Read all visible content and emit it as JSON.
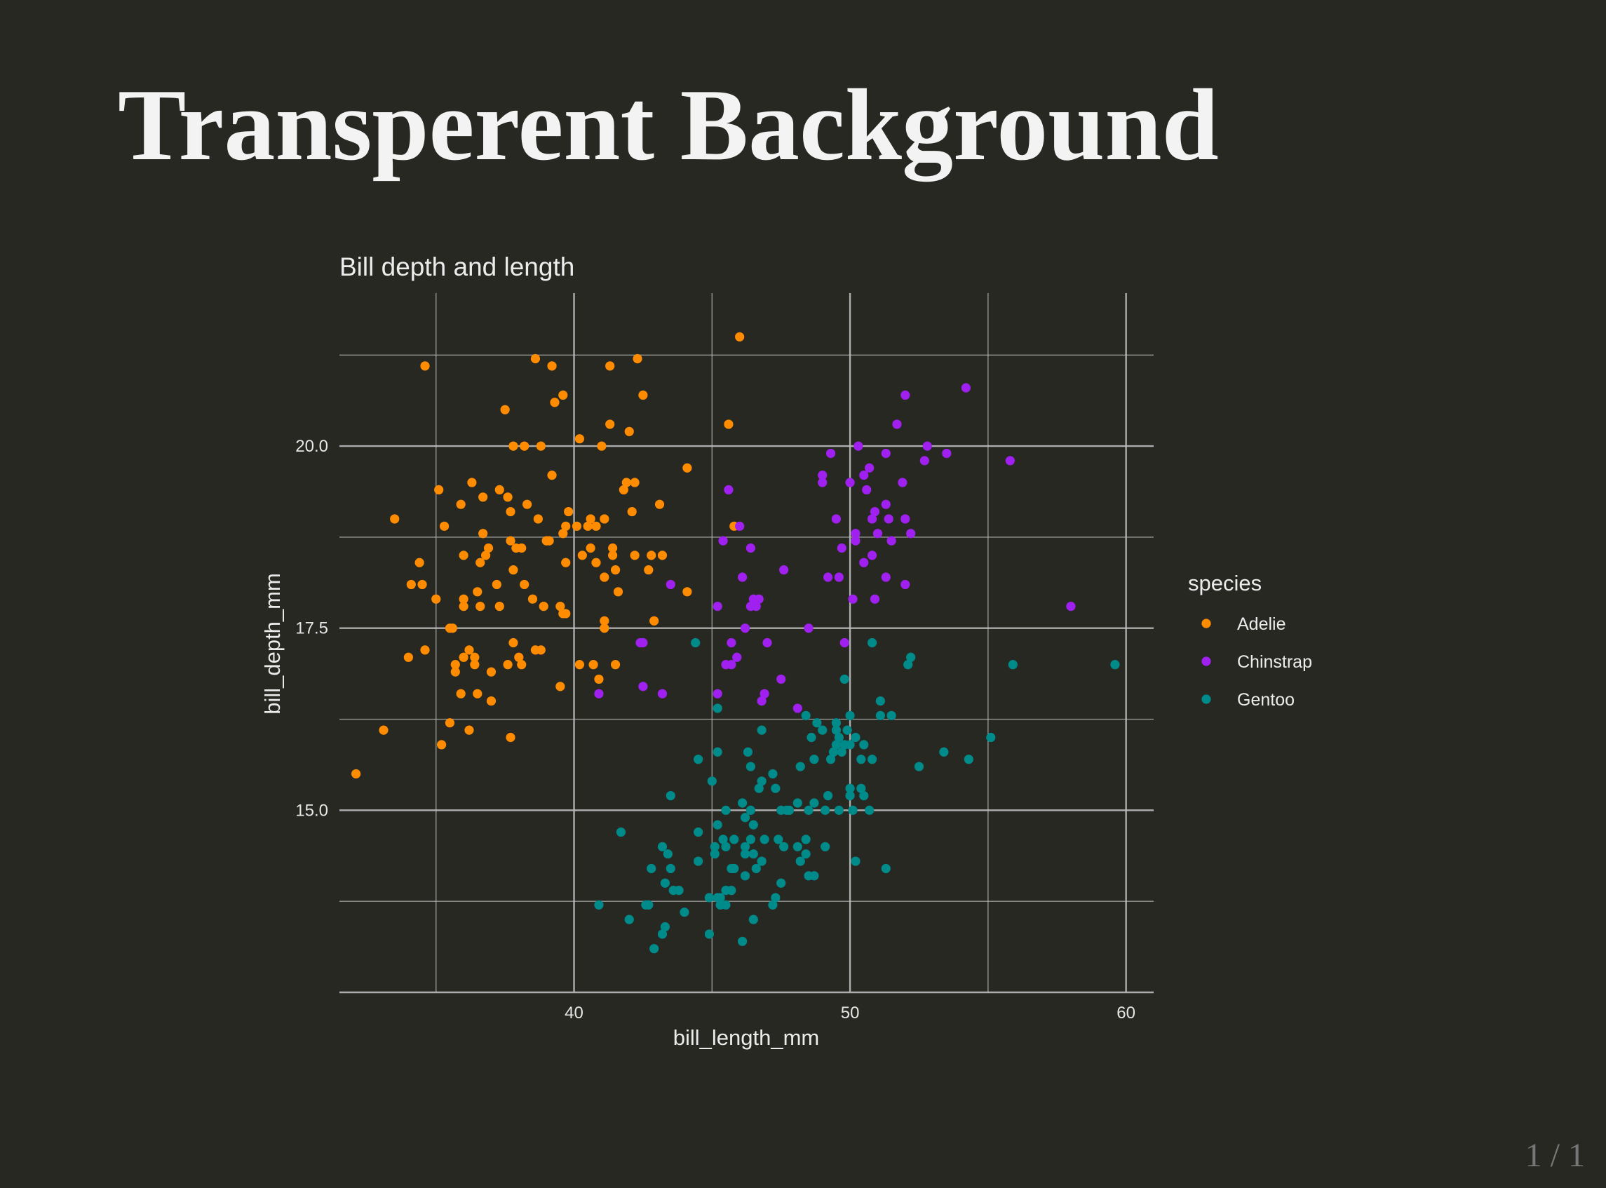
{
  "slide": {
    "title": "Transperent Background",
    "page_number": "1 / 1"
  },
  "colors": {
    "background": "#272822",
    "grid": "#bbbbbb",
    "Adelie": "#ff8c00",
    "Chinstrap": "#a020f0",
    "Gentoo": "#008b8b"
  },
  "chart_data": {
    "type": "scatter",
    "title": "Bill depth and length",
    "xlabel": "bill_length_mm",
    "ylabel": "bill_depth_mm",
    "xlim": [
      31.5,
      61.0
    ],
    "ylim": [
      12.5,
      22.1
    ],
    "x_ticks": [
      40,
      50,
      60
    ],
    "x_tick_labels": [
      "40",
      "50",
      "60"
    ],
    "y_ticks": [
      15.0,
      17.5,
      20.0
    ],
    "y_tick_labels": [
      "15.0",
      "17.5",
      "20.0"
    ],
    "grid": true,
    "legend": {
      "title": "species",
      "position": "right"
    },
    "series": [
      {
        "name": "Adelie",
        "color": "#ff8c00",
        "points": [
          [
            32.1,
            15.5
          ],
          [
            33.1,
            16.1
          ],
          [
            33.5,
            19.0
          ],
          [
            34.0,
            17.1
          ],
          [
            34.1,
            18.1
          ],
          [
            34.4,
            18.4
          ],
          [
            34.5,
            18.1
          ],
          [
            34.6,
            21.1
          ],
          [
            34.6,
            17.2
          ],
          [
            35.0,
            17.9
          ],
          [
            35.1,
            19.4
          ],
          [
            35.2,
            15.9
          ],
          [
            35.3,
            18.9
          ],
          [
            35.5,
            17.5
          ],
          [
            35.5,
            16.2
          ],
          [
            35.6,
            17.5
          ],
          [
            35.7,
            16.9
          ],
          [
            35.7,
            17.0
          ],
          [
            35.9,
            19.2
          ],
          [
            35.9,
            16.6
          ],
          [
            36.0,
            18.5
          ],
          [
            36.0,
            17.9
          ],
          [
            36.0,
            17.8
          ],
          [
            36.0,
            17.1
          ],
          [
            36.2,
            16.1
          ],
          [
            36.2,
            17.2
          ],
          [
            36.3,
            19.5
          ],
          [
            36.4,
            17.0
          ],
          [
            36.4,
            17.1
          ],
          [
            36.5,
            18.0
          ],
          [
            36.5,
            16.6
          ],
          [
            36.6,
            18.4
          ],
          [
            36.7,
            18.8
          ],
          [
            36.7,
            19.3
          ],
          [
            36.8,
            18.5
          ],
          [
            36.9,
            18.6
          ],
          [
            37.0,
            16.9
          ],
          [
            37.0,
            16.5
          ],
          [
            37.2,
            18.1
          ],
          [
            37.3,
            19.4
          ],
          [
            37.3,
            17.8
          ],
          [
            37.5,
            20.5
          ],
          [
            37.6,
            19.3
          ],
          [
            37.6,
            17.0
          ],
          [
            37.7,
            18.7
          ],
          [
            37.7,
            19.1
          ],
          [
            37.7,
            16.0
          ],
          [
            37.8,
            18.3
          ],
          [
            37.8,
            20.0
          ],
          [
            37.8,
            17.3
          ],
          [
            37.9,
            18.6
          ],
          [
            38.0,
            17.1
          ],
          [
            38.1,
            18.6
          ],
          [
            38.1,
            17.0
          ],
          [
            38.2,
            18.1
          ],
          [
            38.2,
            20.0
          ],
          [
            38.3,
            19.2
          ],
          [
            38.6,
            21.2
          ],
          [
            38.6,
            17.2
          ],
          [
            38.7,
            19.0
          ],
          [
            38.8,
            17.2
          ],
          [
            38.8,
            20.0
          ],
          [
            38.9,
            17.8
          ],
          [
            39.0,
            18.7
          ],
          [
            39.1,
            18.7
          ],
          [
            39.2,
            19.6
          ],
          [
            39.2,
            21.1
          ],
          [
            39.3,
            20.6
          ],
          [
            39.5,
            16.7
          ],
          [
            39.5,
            17.8
          ],
          [
            39.6,
            17.7
          ],
          [
            39.6,
            20.7
          ],
          [
            39.7,
            18.4
          ],
          [
            39.7,
            17.7
          ],
          [
            39.8,
            19.1
          ],
          [
            40.1,
            18.9
          ],
          [
            40.2,
            20.1
          ],
          [
            40.2,
            17.0
          ],
          [
            40.3,
            18.5
          ],
          [
            40.5,
            18.9
          ],
          [
            40.6,
            19.0
          ],
          [
            40.6,
            18.6
          ],
          [
            40.7,
            17.0
          ],
          [
            40.8,
            18.9
          ],
          [
            40.9,
            16.8
          ],
          [
            41.0,
            20.0
          ],
          [
            41.1,
            17.6
          ],
          [
            41.1,
            18.2
          ],
          [
            41.1,
            19.0
          ],
          [
            41.3,
            21.1
          ],
          [
            41.3,
            20.3
          ],
          [
            41.4,
            18.5
          ],
          [
            41.4,
            18.6
          ],
          [
            41.5,
            18.3
          ],
          [
            41.6,
            18.0
          ],
          [
            41.8,
            19.4
          ],
          [
            41.9,
            19.5
          ],
          [
            42.0,
            20.2
          ],
          [
            42.1,
            19.1
          ],
          [
            42.2,
            18.5
          ],
          [
            42.2,
            19.5
          ],
          [
            42.3,
            21.2
          ],
          [
            42.5,
            20.7
          ],
          [
            42.7,
            18.3
          ],
          [
            42.8,
            18.5
          ],
          [
            42.9,
            17.6
          ],
          [
            43.1,
            19.2
          ],
          [
            43.2,
            18.5
          ],
          [
            44.1,
            19.7
          ],
          [
            44.1,
            18.0
          ],
          [
            45.6,
            20.3
          ],
          [
            45.8,
            18.9
          ],
          [
            46.0,
            21.5
          ],
          [
            36.6,
            17.8
          ],
          [
            38.5,
            17.9
          ],
          [
            39.6,
            18.8
          ],
          [
            39.7,
            18.9
          ],
          [
            40.8,
            18.4
          ],
          [
            41.1,
            17.5
          ],
          [
            41.5,
            17.0
          ]
        ]
      },
      {
        "name": "Chinstrap",
        "color": "#a020f0",
        "points": [
          [
            40.9,
            16.6
          ],
          [
            42.4,
            17.3
          ],
          [
            42.5,
            17.3
          ],
          [
            42.5,
            16.7
          ],
          [
            43.2,
            16.6
          ],
          [
            43.5,
            18.1
          ],
          [
            45.2,
            17.8
          ],
          [
            45.2,
            16.6
          ],
          [
            45.4,
            18.7
          ],
          [
            45.5,
            17.0
          ],
          [
            45.6,
            19.4
          ],
          [
            45.7,
            17.3
          ],
          [
            45.7,
            17.0
          ],
          [
            45.9,
            17.1
          ],
          [
            46.0,
            18.9
          ],
          [
            46.1,
            18.2
          ],
          [
            46.2,
            17.5
          ],
          [
            46.4,
            18.6
          ],
          [
            46.4,
            17.8
          ],
          [
            46.5,
            17.9
          ],
          [
            46.6,
            17.8
          ],
          [
            46.7,
            17.9
          ],
          [
            46.8,
            16.5
          ],
          [
            46.9,
            16.6
          ],
          [
            47.0,
            17.3
          ],
          [
            47.5,
            16.8
          ],
          [
            47.6,
            18.3
          ],
          [
            48.1,
            16.4
          ],
          [
            48.5,
            17.5
          ],
          [
            49.0,
            19.5
          ],
          [
            49.0,
            19.6
          ],
          [
            49.2,
            18.2
          ],
          [
            49.3,
            19.9
          ],
          [
            49.5,
            19.0
          ],
          [
            49.6,
            18.2
          ],
          [
            49.7,
            18.6
          ],
          [
            49.8,
            17.3
          ],
          [
            50.0,
            19.5
          ],
          [
            50.1,
            17.9
          ],
          [
            50.2,
            18.8
          ],
          [
            50.2,
            18.7
          ],
          [
            50.3,
            20.0
          ],
          [
            50.5,
            18.4
          ],
          [
            50.5,
            19.6
          ],
          [
            50.6,
            19.4
          ],
          [
            50.7,
            19.7
          ],
          [
            50.8,
            18.5
          ],
          [
            50.8,
            19.0
          ],
          [
            50.9,
            17.9
          ],
          [
            50.9,
            19.1
          ],
          [
            51.0,
            18.8
          ],
          [
            51.3,
            18.2
          ],
          [
            51.3,
            19.2
          ],
          [
            51.3,
            19.9
          ],
          [
            51.4,
            19.0
          ],
          [
            51.5,
            18.7
          ],
          [
            51.7,
            20.3
          ],
          [
            51.9,
            19.5
          ],
          [
            52.0,
            18.1
          ],
          [
            52.0,
            19.0
          ],
          [
            52.0,
            20.7
          ],
          [
            52.2,
            18.8
          ],
          [
            52.7,
            19.8
          ],
          [
            52.8,
            20.0
          ],
          [
            53.5,
            19.9
          ],
          [
            54.2,
            20.8
          ],
          [
            55.8,
            19.8
          ],
          [
            58.0,
            17.8
          ]
        ]
      },
      {
        "name": "Gentoo",
        "color": "#008b8b",
        "points": [
          [
            40.9,
            13.7
          ],
          [
            41.7,
            14.7
          ],
          [
            42.0,
            13.5
          ],
          [
            42.6,
            13.7
          ],
          [
            42.7,
            13.7
          ],
          [
            42.8,
            14.2
          ],
          [
            42.9,
            13.1
          ],
          [
            43.2,
            14.5
          ],
          [
            43.2,
            13.3
          ],
          [
            43.3,
            14.0
          ],
          [
            43.3,
            13.4
          ],
          [
            43.4,
            14.4
          ],
          [
            43.5,
            14.2
          ],
          [
            43.5,
            15.2
          ],
          [
            43.6,
            13.9
          ],
          [
            43.8,
            13.9
          ],
          [
            44.0,
            13.6
          ],
          [
            44.4,
            17.3
          ],
          [
            44.5,
            14.7
          ],
          [
            44.5,
            15.7
          ],
          [
            44.5,
            14.3
          ],
          [
            44.9,
            13.8
          ],
          [
            44.9,
            13.3
          ],
          [
            45.0,
            15.4
          ],
          [
            45.1,
            14.5
          ],
          [
            45.1,
            14.4
          ],
          [
            45.2,
            13.8
          ],
          [
            45.2,
            14.8
          ],
          [
            45.2,
            15.8
          ],
          [
            45.2,
            16.4
          ],
          [
            45.3,
            13.7
          ],
          [
            45.3,
            13.8
          ],
          [
            45.4,
            14.6
          ],
          [
            45.5,
            13.7
          ],
          [
            45.5,
            13.9
          ],
          [
            45.5,
            14.5
          ],
          [
            45.5,
            15.0
          ],
          [
            45.7,
            13.9
          ],
          [
            45.7,
            14.2
          ],
          [
            45.8,
            14.2
          ],
          [
            45.8,
            14.6
          ],
          [
            46.1,
            13.2
          ],
          [
            46.1,
            15.1
          ],
          [
            46.2,
            14.1
          ],
          [
            46.2,
            14.4
          ],
          [
            46.2,
            14.5
          ],
          [
            46.2,
            14.9
          ],
          [
            46.3,
            15.8
          ],
          [
            46.4,
            14.6
          ],
          [
            46.4,
            15.0
          ],
          [
            46.4,
            15.6
          ],
          [
            46.5,
            13.5
          ],
          [
            46.5,
            14.4
          ],
          [
            46.5,
            14.8
          ],
          [
            46.6,
            14.2
          ],
          [
            46.7,
            15.3
          ],
          [
            46.8,
            14.3
          ],
          [
            46.8,
            15.4
          ],
          [
            46.8,
            16.1
          ],
          [
            46.9,
            14.6
          ],
          [
            47.2,
            13.7
          ],
          [
            47.2,
            15.5
          ],
          [
            47.3,
            13.8
          ],
          [
            47.3,
            15.3
          ],
          [
            47.4,
            14.6
          ],
          [
            47.5,
            14.0
          ],
          [
            47.5,
            15.0
          ],
          [
            47.6,
            14.5
          ],
          [
            47.7,
            15.0
          ],
          [
            47.8,
            15.0
          ],
          [
            48.1,
            14.5
          ],
          [
            48.1,
            15.1
          ],
          [
            48.2,
            14.3
          ],
          [
            48.2,
            15.6
          ],
          [
            48.4,
            14.4
          ],
          [
            48.4,
            14.6
          ],
          [
            48.4,
            16.3
          ],
          [
            48.5,
            14.1
          ],
          [
            48.5,
            15.0
          ],
          [
            48.6,
            16.0
          ],
          [
            48.7,
            14.1
          ],
          [
            48.7,
            15.1
          ],
          [
            48.7,
            15.7
          ],
          [
            48.8,
            16.2
          ],
          [
            49.0,
            16.1
          ],
          [
            49.1,
            14.5
          ],
          [
            49.1,
            15.0
          ],
          [
            49.2,
            15.2
          ],
          [
            49.3,
            15.7
          ],
          [
            49.4,
            15.8
          ],
          [
            49.5,
            15.9
          ],
          [
            49.5,
            16.1
          ],
          [
            49.5,
            16.2
          ],
          [
            49.6,
            15.0
          ],
          [
            49.6,
            16.0
          ],
          [
            49.7,
            15.8
          ],
          [
            49.8,
            15.9
          ],
          [
            49.8,
            16.8
          ],
          [
            49.9,
            16.1
          ],
          [
            50.0,
            15.2
          ],
          [
            50.0,
            15.3
          ],
          [
            50.0,
            15.9
          ],
          [
            50.0,
            16.3
          ],
          [
            50.1,
            15.0
          ],
          [
            50.2,
            14.3
          ],
          [
            50.2,
            16.0
          ],
          [
            50.4,
            15.3
          ],
          [
            50.4,
            15.7
          ],
          [
            50.5,
            15.2
          ],
          [
            50.5,
            15.9
          ],
          [
            50.7,
            15.0
          ],
          [
            50.8,
            15.7
          ],
          [
            50.8,
            17.3
          ],
          [
            51.1,
            16.3
          ],
          [
            51.1,
            16.5
          ],
          [
            51.3,
            14.2
          ],
          [
            51.5,
            16.3
          ],
          [
            52.1,
            17.0
          ],
          [
            52.2,
            17.1
          ],
          [
            52.5,
            15.6
          ],
          [
            53.4,
            15.8
          ],
          [
            54.3,
            15.7
          ],
          [
            55.1,
            16.0
          ],
          [
            55.9,
            17.0
          ],
          [
            59.6,
            17.0
          ]
        ]
      }
    ]
  }
}
